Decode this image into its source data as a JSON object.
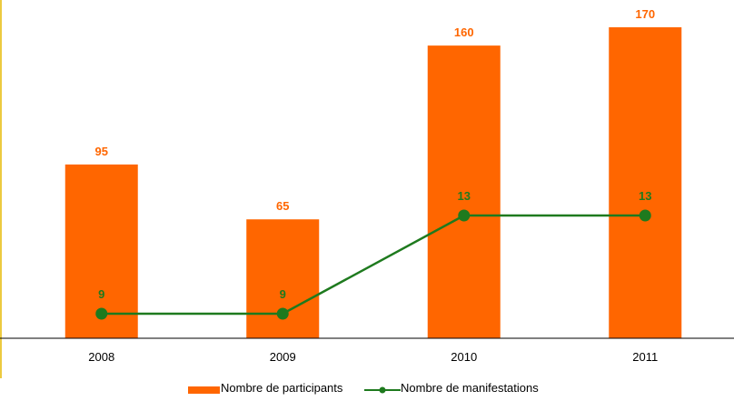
{
  "chart_data": {
    "type": "bar",
    "categories": [
      "2008",
      "2009",
      "2010",
      "2011"
    ],
    "series": [
      {
        "name": "Nombre de participants",
        "type": "bar",
        "values": [
          95,
          65,
          160,
          170
        ],
        "color": "#FF6600"
      },
      {
        "name": "Nombre de manifestations",
        "type": "line",
        "values": [
          9,
          9,
          13,
          13
        ],
        "color": "#1E7A1E"
      }
    ],
    "title": "",
    "xlabel": "",
    "ylabel": "",
    "ylim": [
      0,
      175
    ],
    "grid": false,
    "legend_position": "bottom"
  },
  "colors": {
    "bar": "#FF6600",
    "line": "#1E7A1E",
    "axis": "#000000",
    "left_border": "#E6B800"
  }
}
